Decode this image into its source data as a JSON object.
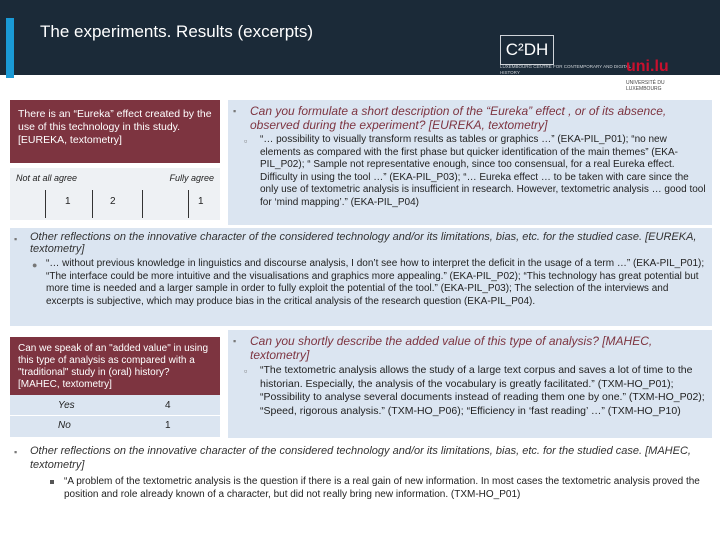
{
  "title": "The experiments. Results (excerpts)",
  "logos": {
    "c2dh": "C²DH",
    "c2dh_sub": "LUXEMBOURG CENTRE FOR CONTEMPORARY AND DIGITAL HISTORY",
    "uni": "uni.lu",
    "uni_sub": "UNIVERSITÉ DU LUXEMBOURG"
  },
  "eureka": {
    "box_text": "There is an “Eureka” effect created by the use of this technology in this study. [EUREKA, textometry]",
    "scale_left": "Not at all agree",
    "scale_right": "Fully agree",
    "scale_values": [
      "1",
      "2",
      "1"
    ],
    "question": "Can you formulate a short description of the “Eureka” effect , or of its absence, observed during the experiment? [EUREKA, textometry]",
    "answer": "“… possibility to visually transform results as tables or graphics …” (EKA-PIL_P01); “no new elements as compared with the first phase but quicker identification of the main themes” (EKA-PIL_P02); “ Sample not representative enough, since too consensual, for a real Eureka effect. Difficulty in using the tool …” (EKA-PIL_P03); “… Eureka effect … to be taken with care since the only use of textometric analysis is insufficient in research. However, textometric analysis … good tool for ‘mind mapping’.” (EKA-PIL_P04)"
  },
  "reflection1": {
    "heading": "Other reflections on the innovative character of the considered technology and/or its limitations, bias, etc. for the studied case. [EUREKA, textometry]",
    "text": "“… without previous knowledge in linguistics and discourse analysis, I don’t see how to interpret the deficit in the usage of a term …” (EKA-PIL_P01); “The interface could be more intuitive and the visualisations and graphics more appealing.” (EKA-PIL_P02); “This technology has great potential but more time is needed and a larger sample in order to fully exploit the potential of the tool.” (EKA-PIL_P03); The selection of the interviews and excerpts is subjective, which may produce bias in the critical analysis of the research question (EKA-PIL_P04)."
  },
  "added_value": {
    "box_text": "Can we speak of an \"added value\" in using this type of analysis as compared with a \"traditional\" study in (oral) history? [MAHEC, textometry]",
    "rows": [
      {
        "label": "Yes",
        "value": "4"
      },
      {
        "label": "No",
        "value": "1"
      }
    ],
    "question": "Can you shortly describe the added value of this type of analysis? [MAHEC, textometry]",
    "answer": "“The textometric analysis allows the study of a large text corpus and saves a lot of time to the historian. Especially, the analysis of the vocabulary is greatly facilitated.” (TXM-HO_P01); “Possibility to analyse several documents instead of reading them one by one.” (TXM-HO_P02); “Speed, rigorous analysis.” (TXM-HO_P06); “Efficiency in ‘fast reading’ …” (TXM-HO_P10)"
  },
  "reflection2": {
    "heading": "Other reflections on the innovative character of the considered technology and/or its limitations, bias, etc. for the studied case. [MAHEC, textometry]",
    "text": "“A problem of the textometric analysis is the question if there is a real gain of new information. In most cases the textometric analysis proved the position and role already known of a character, but did not really bring new information. (TXM-HO_P01)"
  }
}
